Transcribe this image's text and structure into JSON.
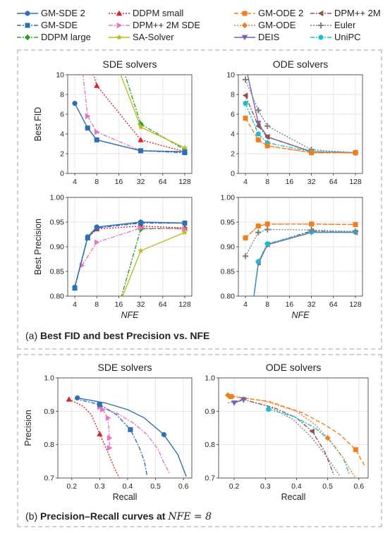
{
  "legend": [
    {
      "name": "GM-SDE 2",
      "color": "#2f6fb3",
      "dash": "",
      "marker": "circle"
    },
    {
      "name": "DDPM small",
      "color": "#d62728",
      "dash": "2,2",
      "marker": "triangle"
    },
    {
      "name": "GM-ODE 2",
      "color": "#f07f1e",
      "dash": "6,3",
      "marker": "square"
    },
    {
      "name": "DPM++ 2M",
      "color": "#8c564b",
      "dash": "6,2,2,2",
      "marker": "triangle-left"
    },
    {
      "name": "GM-SDE",
      "color": "#2f6fb3",
      "dash": "6,2,2,2",
      "marker": "square"
    },
    {
      "name": "DPM++ 2M SDE",
      "color": "#e377c2",
      "dash": "6,2,2,2",
      "marker": "triangle-right"
    },
    {
      "name": "GM-ODE",
      "color": "#f07f1e",
      "dash": "2,2",
      "marker": "diamond"
    },
    {
      "name": "Euler",
      "color": "#7f7f7f",
      "dash": "2,2",
      "marker": "plus"
    },
    {
      "name": "DDPM large",
      "color": "#2ca02c",
      "dash": "6,2,2,2",
      "marker": "diamond"
    },
    {
      "name": "SA-Solver",
      "color": "#bcbd22",
      "dash": "",
      "marker": "star"
    },
    {
      "name": "DEIS",
      "color": "#7b5fb5",
      "dash": "",
      "marker": "triangle-down"
    },
    {
      "name": "UniPC",
      "color": "#17becf",
      "dash": "6,2,2,2",
      "marker": "circle"
    }
  ],
  "captions": {
    "a_prefix": "(a) ",
    "a_bold": "Best FID and best Precision vs. NFE",
    "b_prefix": "(b) ",
    "b_bold": "Precision–Recall curves at ",
    "b_math": "NFE = 8"
  },
  "chart_data": [
    {
      "id": "sde-fid",
      "type": "line",
      "title": "SDE solvers",
      "ylabel": "Best FID",
      "xlabel": "",
      "xscale": "log2",
      "xticks": [
        4,
        8,
        16,
        32,
        64,
        128
      ],
      "ylim": [
        0,
        10
      ],
      "yticks": [
        0,
        2,
        4,
        6,
        8,
        10
      ],
      "ytick_labels": [
        "0",
        "2",
        "4",
        "6",
        "8",
        "10"
      ],
      "series": [
        {
          "name": "DDPM large",
          "x": [
            32,
            128
          ],
          "y": [
            5.0,
            2.4
          ],
          "x_extend": [
            16,
            32
          ],
          "y_extend": [
            12,
            5.0
          ]
        },
        {
          "name": "SA-Solver",
          "x": [
            32,
            128
          ],
          "y": [
            4.7,
            2.6
          ],
          "x_extend": [
            16,
            32
          ],
          "y_extend": [
            10.5,
            4.7
          ]
        },
        {
          "name": "DDPM small",
          "x": [
            8,
            32,
            128
          ],
          "y": [
            8.9,
            3.4,
            2.2
          ],
          "x_extend": [
            6,
            8
          ],
          "y_extend": [
            12,
            8.9
          ]
        },
        {
          "name": "DPM++ 2M SDE",
          "x": [
            6,
            8,
            32,
            128
          ],
          "y": [
            5.8,
            4.2,
            2.3,
            2.2
          ],
          "x_extend": [
            5,
            6
          ],
          "y_extend": [
            11,
            5.8
          ]
        },
        {
          "name": "GM-SDE",
          "x": [
            6,
            8,
            32,
            128
          ],
          "y": [
            4.6,
            3.4,
            2.3,
            2.1
          ]
        },
        {
          "name": "GM-SDE 2",
          "x": [
            4,
            6,
            8,
            32,
            128
          ],
          "y": [
            7.1,
            4.6,
            3.4,
            2.3,
            2.2
          ]
        }
      ]
    },
    {
      "id": "ode-fid",
      "type": "line",
      "title": "ODE solvers",
      "ylabel": "",
      "xlabel": "",
      "xscale": "log2",
      "xticks": [
        4,
        8,
        16,
        32,
        64,
        128
      ],
      "ylim": [
        0,
        10
      ],
      "yticks": [
        0,
        2,
        4,
        6,
        8,
        10
      ],
      "ytick_labels": [
        "0",
        "2",
        "4",
        "6",
        "8",
        "10"
      ],
      "series": [
        {
          "name": "DEIS",
          "x": [
            6,
            8,
            32,
            128
          ],
          "y": [
            5.1,
            3.7,
            2.2,
            2.1
          ],
          "x_extend": [
            4,
            6
          ],
          "y_extend": [
            11,
            5.1
          ]
        },
        {
          "name": "Euler",
          "x": [
            4,
            6,
            8,
            32,
            128
          ],
          "y": [
            9.5,
            6.4,
            4.8,
            2.4,
            2.1
          ]
        },
        {
          "name": "DPM++ 2M",
          "x": [
            4,
            6,
            8,
            32,
            128
          ],
          "y": [
            7.9,
            4.8,
            3.7,
            2.2,
            2.1
          ]
        },
        {
          "name": "UniPC",
          "x": [
            4,
            6,
            8,
            32,
            128
          ],
          "y": [
            7.1,
            4.0,
            3.1,
            2.2,
            2.1
          ]
        },
        {
          "name": "GM-ODE",
          "x": [
            6,
            8,
            32,
            128
          ],
          "y": [
            3.4,
            2.8,
            2.1,
            2.1
          ]
        },
        {
          "name": "GM-ODE 2",
          "x": [
            4,
            6,
            8,
            32,
            128
          ],
          "y": [
            5.6,
            3.4,
            2.8,
            2.1,
            2.1
          ]
        }
      ]
    },
    {
      "id": "sde-prec",
      "type": "line",
      "title": "",
      "ylabel": "Best Precision",
      "xlabel": "NFE",
      "xscale": "log2",
      "xticks": [
        4,
        8,
        16,
        32,
        64,
        128
      ],
      "ylim": [
        0.8,
        1.0
      ],
      "yticks": [
        0.8,
        0.85,
        0.9,
        0.95,
        1.0
      ],
      "ytick_labels": [
        "0.80",
        "0.85",
        "0.90",
        "0.95",
        "1.00"
      ],
      "series": [
        {
          "name": "DDPM large",
          "x": [
            32,
            128
          ],
          "y": [
            0.936,
            0.938
          ],
          "x_extend": [
            16,
            32
          ],
          "y_extend": [
            0.78,
            0.936
          ]
        },
        {
          "name": "SA-Solver",
          "x": [
            32,
            128
          ],
          "y": [
            0.892,
            0.929
          ],
          "x_extend": [
            16,
            32
          ],
          "y_extend": [
            0.78,
            0.892
          ]
        },
        {
          "name": "DDPM small",
          "x": [
            6,
            8,
            32,
            128
          ],
          "y": [
            0.918,
            0.936,
            0.942,
            0.938
          ]
        },
        {
          "name": "DPM++ 2M SDE",
          "x": [
            5,
            8,
            32,
            128
          ],
          "y": [
            0.862,
            0.909,
            0.938,
            0.936
          ]
        },
        {
          "name": "GM-SDE",
          "x": [
            4,
            6,
            8,
            32,
            128
          ],
          "y": [
            0.816,
            0.918,
            0.938,
            0.948,
            0.948
          ]
        },
        {
          "name": "GM-SDE 2",
          "x": [
            4,
            6,
            8,
            32,
            128
          ],
          "y": [
            0.818,
            0.92,
            0.94,
            0.95,
            0.948
          ]
        }
      ]
    },
    {
      "id": "ode-prec",
      "type": "line",
      "title": "",
      "ylabel": "",
      "xlabel": "NFE",
      "xscale": "log2",
      "xticks": [
        4,
        8,
        16,
        32,
        64,
        128
      ],
      "ylim": [
        0.8,
        1.0
      ],
      "yticks": [
        0.8,
        0.85,
        0.9,
        0.95,
        1.0
      ],
      "ytick_labels": [
        "0.80",
        "0.85",
        "0.90",
        "0.95",
        "1.00"
      ],
      "series": [
        {
          "name": "DEIS",
          "x": [
            6,
            8,
            32,
            128
          ],
          "y": [
            0.866,
            0.904,
            0.929,
            0.929
          ],
          "x_extend": [
            5,
            6
          ],
          "y_extend": [
            0.78,
            0.866
          ]
        },
        {
          "name": "DPM++ 2M",
          "x": [
            6,
            8,
            32,
            128
          ],
          "y": [
            0.868,
            0.905,
            0.932,
            0.929
          ],
          "x_extend": [
            5,
            6
          ],
          "y_extend": [
            0.78,
            0.868
          ]
        },
        {
          "name": "UniPC",
          "x": [
            6,
            8,
            32,
            128
          ],
          "y": [
            0.87,
            0.906,
            0.93,
            0.93
          ],
          "x_extend": [
            5,
            6
          ],
          "y_extend": [
            0.78,
            0.87
          ]
        },
        {
          "name": "Euler",
          "x": [
            4,
            6,
            8,
            32,
            128
          ],
          "y": [
            0.881,
            0.929,
            0.935,
            0.934,
            0.931
          ]
        },
        {
          "name": "GM-ODE",
          "x": [
            4,
            6,
            8,
            32,
            128
          ],
          "y": [
            0.918,
            0.942,
            0.946,
            0.946,
            0.945
          ]
        },
        {
          "name": "GM-ODE 2",
          "x": [
            4,
            6,
            8,
            32,
            128
          ],
          "y": [
            0.918,
            0.942,
            0.946,
            0.946,
            0.945
          ]
        }
      ]
    },
    {
      "id": "sde-pr",
      "type": "line",
      "title": "SDE solvers",
      "ylabel": "Precision",
      "xlabel": "Recall",
      "xscale": "linear",
      "xlim": [
        0.15,
        0.63
      ],
      "xticks": [
        0.2,
        0.3,
        0.4,
        0.5,
        0.6
      ],
      "xtick_labels": [
        "0.2",
        "0.3",
        "0.4",
        "0.5",
        "0.6"
      ],
      "ylim": [
        0.7,
        1.0
      ],
      "yticks": [
        0.7,
        0.8,
        0.9,
        1.0
      ],
      "ytick_labels": [
        "0.7",
        "0.8",
        "0.9",
        "1.0"
      ],
      "series": [
        {
          "name": "DDPM small",
          "x": [
            0.19,
            0.24,
            0.27,
            0.3,
            0.33,
            0.35,
            0.37
          ],
          "y": [
            0.936,
            0.915,
            0.89,
            0.832,
            0.775,
            0.735,
            0.7
          ],
          "marker_index": [
            0,
            3
          ]
        },
        {
          "name": "DPM++ 2M SDE",
          "x": [
            0.3,
            0.36,
            0.42,
            0.47,
            0.51,
            0.53,
            0.55
          ],
          "y": [
            0.912,
            0.895,
            0.865,
            0.83,
            0.785,
            0.745,
            0.715
          ],
          "marker_index": [
            0
          ]
        },
        {
          "name": "GM-SDE",
          "x": [
            0.21,
            0.3,
            0.36,
            0.41,
            0.44,
            0.46,
            0.47
          ],
          "y": [
            0.938,
            0.92,
            0.89,
            0.845,
            0.795,
            0.75,
            0.705
          ],
          "marker_index": [
            1,
            3
          ]
        },
        {
          "name": "GM-SDE 2",
          "x": [
            0.22,
            0.32,
            0.4,
            0.46,
            0.53,
            0.58,
            0.61
          ],
          "y": [
            0.94,
            0.925,
            0.905,
            0.88,
            0.83,
            0.77,
            0.705
          ],
          "marker_index": [
            0,
            4
          ]
        },
        {
          "name": "DPM++ 2M SDE",
          "x": [
            0.31,
            0.33,
            0.335,
            0.335
          ],
          "y": [
            0.905,
            0.88,
            0.82,
            0.79
          ]
        }
      ]
    },
    {
      "id": "ode-pr",
      "type": "line",
      "title": "ODE solvers",
      "ylabel": "",
      "xlabel": "Recall",
      "xscale": "linear",
      "xlim": [
        0.15,
        0.63
      ],
      "xticks": [
        0.2,
        0.3,
        0.4,
        0.5,
        0.6
      ],
      "xtick_labels": [
        "0.2",
        "0.3",
        "0.4",
        "0.5",
        "0.6"
      ],
      "ylim": [
        0.7,
        1.0
      ],
      "yticks": [
        0.7,
        0.8,
        0.9,
        1.0
      ],
      "ytick_labels": [
        "0.7",
        "0.8",
        "0.9",
        "1.0"
      ],
      "series": [
        {
          "name": "Euler",
          "x": [
            0.18,
            0.23,
            0.31,
            0.39,
            0.45,
            0.5,
            0.54
          ],
          "y": [
            0.925,
            0.935,
            0.915,
            0.875,
            0.82,
            0.76,
            0.705
          ],
          "marker_index": [
            1
          ]
        },
        {
          "name": "DPM++ 2M",
          "x": [
            0.25,
            0.33,
            0.4,
            0.45,
            0.49,
            0.52
          ],
          "y": [
            0.93,
            0.91,
            0.88,
            0.84,
            0.78,
            0.71
          ],
          "marker_index": [
            3
          ]
        },
        {
          "name": "UniPC",
          "x": [
            0.31,
            0.39,
            0.46,
            0.51,
            0.55,
            0.57
          ],
          "y": [
            0.906,
            0.885,
            0.85,
            0.81,
            0.76,
            0.71
          ],
          "marker_index": [
            0
          ]
        },
        {
          "name": "GM-ODE",
          "x": [
            0.18,
            0.3,
            0.4,
            0.46,
            0.5,
            0.55,
            0.59
          ],
          "y": [
            0.948,
            0.93,
            0.9,
            0.86,
            0.82,
            0.76,
            0.7
          ],
          "marker_index": [
            0,
            4
          ]
        },
        {
          "name": "GM-ODE 2",
          "x": [
            0.19,
            0.31,
            0.42,
            0.49,
            0.54,
            0.59,
            0.62
          ],
          "y": [
            0.944,
            0.93,
            0.895,
            0.86,
            0.83,
            0.785,
            0.735
          ],
          "marker_index": [
            0,
            5
          ]
        },
        {
          "name": "DEIS",
          "x": [
            0.2,
            0.23
          ],
          "y": [
            0.925,
            0.935
          ]
        }
      ]
    }
  ]
}
